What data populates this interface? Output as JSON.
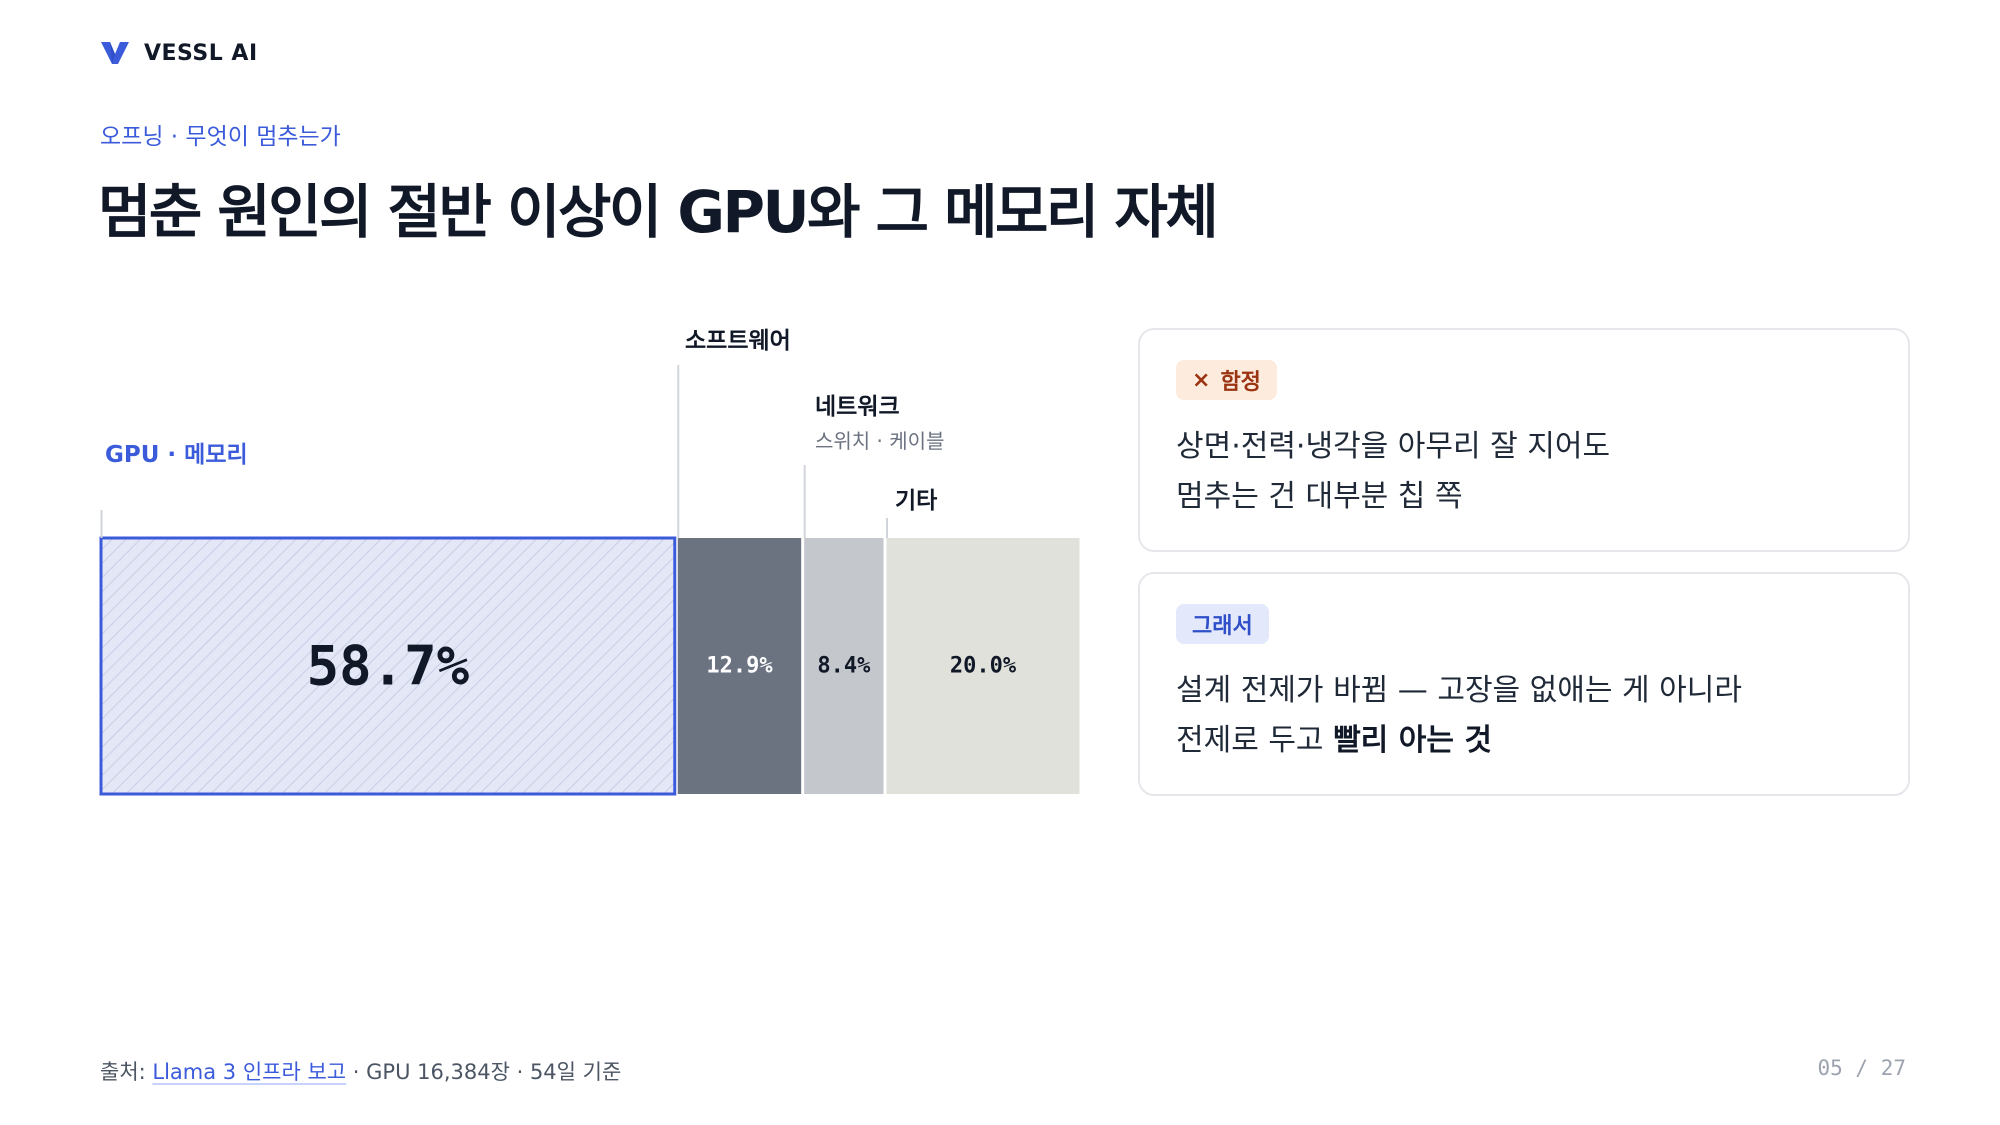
{
  "brand": {
    "name": "VESSL AI",
    "accent": "#3b5bdb"
  },
  "eyebrow": "오프닝 · 무엇이 멈추는가",
  "headline": "멈춘 원인의 절반 이상이 GPU와 그 메모리 자체",
  "chart_data": {
    "type": "bar",
    "orientation": "horizontal-stacked",
    "categories": [
      "GPU · 메모리",
      "소프트웨어",
      "네트워크",
      "기타"
    ],
    "category_sublabels": [
      "",
      "",
      "스위치 · 케이블",
      ""
    ],
    "values": [
      58.7,
      12.9,
      8.4,
      20.0
    ],
    "value_labels": [
      "58.7%",
      "12.9%",
      "8.4%",
      "20.0%"
    ],
    "colors": [
      "#e4e7f5",
      "#6b7280",
      "#c4c7cc",
      "#dfe1da"
    ],
    "highlight_color": "#3b5bdb",
    "title": "",
    "xlabel": "",
    "ylabel": ""
  },
  "cards": [
    {
      "badge": {
        "icon": "×",
        "label": "함정"
      },
      "lines": [
        "상면·전력·냉각을 아무리 잘 지어도",
        "멈추는 건 대부분 칩 쪽"
      ]
    },
    {
      "badge": {
        "label": "그래서"
      },
      "lines": [
        "설계 전제가 바뀜 — 고장을 없애는 게 아니라"
      ],
      "line2_prefix": "전제로 두고 ",
      "line2_bold": "빨리 아는 것"
    }
  ],
  "footer": {
    "prefix": "출처: ",
    "source": "Llama 3 인프라 보고",
    "suffix": " · GPU 16,384장 · 54일 기준"
  },
  "pager": "05 / 27"
}
